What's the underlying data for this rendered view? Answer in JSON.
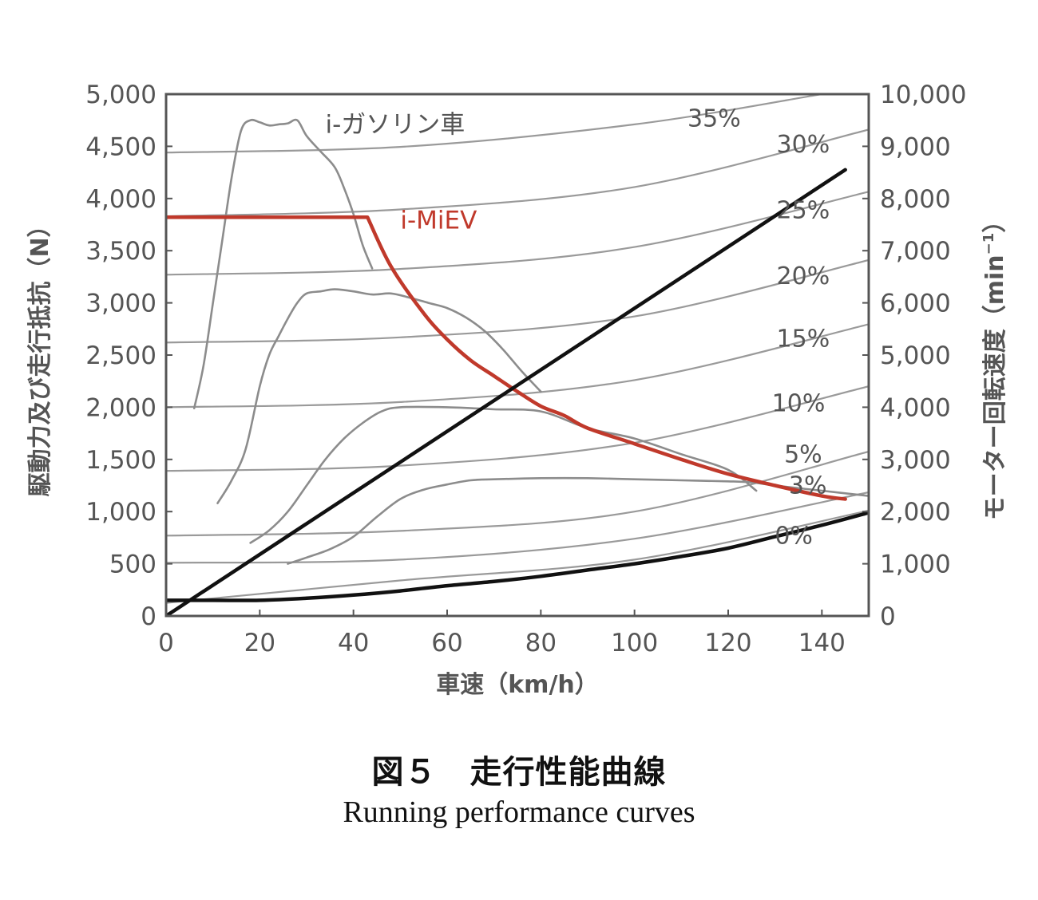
{
  "chart_data": {
    "type": "line",
    "x": {
      "label": "車速（km/h）",
      "lim": [
        0,
        150
      ],
      "ticks": [
        0,
        20,
        40,
        60,
        80,
        100,
        120,
        140
      ]
    },
    "y_left": {
      "label": "駆動力及び走行抵抗（N）",
      "lim": [
        0,
        5000
      ],
      "ticks": [
        0,
        500,
        1000,
        1500,
        2000,
        2500,
        3000,
        3500,
        4000,
        4500,
        5000
      ],
      "tick_labels": [
        "0",
        "500",
        "1,000",
        "1,500",
        "2,000",
        "2,500",
        "3,000",
        "3,500",
        "4,000",
        "4,500",
        "5,000"
      ]
    },
    "y_right": {
      "label": "モーター回転速度（min",
      "label_superscript": "−1",
      "label_close": "）",
      "lim": [
        0,
        10000
      ],
      "ticks": [
        0,
        1000,
        2000,
        3000,
        4000,
        5000,
        6000,
        7000,
        8000,
        9000,
        10000
      ],
      "tick_labels": [
        "0",
        "1,000",
        "2,000",
        "3,000",
        "4,000",
        "5,000",
        "6,000",
        "7,000",
        "8,000",
        "9,000",
        "10,000"
      ]
    },
    "grade_curves": [
      {
        "label": "0%",
        "x": [
          0,
          50,
          100,
          150
        ],
        "y": [
          125,
          340,
          540,
          1010
        ],
        "label_at": [
          134,
          690
        ]
      },
      {
        "label": "3%",
        "x": [
          0,
          50,
          100,
          150
        ],
        "y": [
          510,
          540,
          740,
          1185
        ],
        "label_at": [
          137,
          1175
        ]
      },
      {
        "label": "5%",
        "x": [
          0,
          50,
          100,
          150
        ],
        "y": [
          770,
          815,
          1000,
          1575
        ],
        "label_at": [
          136,
          1470
        ]
      },
      {
        "label": "10%",
        "x": [
          0,
          50,
          100,
          150
        ],
        "y": [
          1390,
          1440,
          1660,
          2200
        ],
        "label_at": [
          135,
          1960
        ]
      },
      {
        "label": "15%",
        "x": [
          0,
          50,
          100,
          150
        ],
        "y": [
          2000,
          2050,
          2260,
          2795
        ],
        "label_at": [
          136,
          2580
        ]
      },
      {
        "label": "20%",
        "x": [
          0,
          50,
          100,
          150
        ],
        "y": [
          2620,
          2670,
          2870,
          3410
        ],
        "label_at": [
          136,
          3180
        ]
      },
      {
        "label": "25%",
        "x": [
          0,
          50,
          100,
          150
        ],
        "y": [
          3270,
          3325,
          3535,
          4065
        ],
        "label_at": [
          136,
          3810
        ]
      },
      {
        "label": "30%",
        "x": [
          0,
          50,
          100,
          150
        ],
        "y": [
          3830,
          3895,
          4110,
          4660
        ],
        "label_at": [
          136,
          4440
        ]
      },
      {
        "label": "35%",
        "x": [
          0,
          50,
          100,
          140
        ],
        "y": [
          4440,
          4495,
          4710,
          5000
        ],
        "label_at": [
          117,
          4690
        ]
      }
    ],
    "series": [
      {
        "name": "i-ガソリン車",
        "axis": "left",
        "color": "#8c8c8c",
        "segments": [
          {
            "x": [
              6,
              8,
              10,
              12,
              14,
              16,
              18,
              20,
              22,
              24,
              26,
              28,
              30,
              33,
              36,
              38,
              40,
              42,
              44
            ],
            "y": [
              1990,
              2400,
              3000,
              3600,
              4200,
              4650,
              4750,
              4730,
              4700,
              4710,
              4720,
              4750,
              4600,
              4450,
              4300,
              4100,
              3850,
              3550,
              3330
            ]
          },
          {
            "x": [
              11,
              14,
              17,
              20,
              22,
              24,
              26,
              28,
              30,
              33,
              36,
              40,
              44,
              48,
              52,
              56,
              60,
              64,
              68,
              72,
              76,
              80
            ],
            "y": [
              1080,
              1300,
              1600,
              2200,
              2500,
              2680,
              2850,
              3000,
              3090,
              3110,
              3130,
              3110,
              3080,
              3090,
              3050,
              3000,
              2950,
              2860,
              2730,
              2550,
              2340,
              2150
            ]
          },
          {
            "x": [
              18,
              22,
              26,
              30,
              34,
              38,
              42,
              46,
              50,
              60,
              70,
              80,
              90,
              100,
              110,
              120,
              126
            ],
            "y": [
              700,
              820,
              1000,
              1250,
              1500,
              1700,
              1850,
              1960,
              2000,
              2000,
              1980,
              1960,
              1800,
              1700,
              1550,
              1400,
              1200
            ]
          },
          {
            "x": [
              26,
              30,
              35,
              40,
              45,
              50,
              55,
              60,
              65,
              70,
              80,
              90,
              100,
              110,
              120,
              125,
              130,
              140,
              150
            ],
            "y": [
              500,
              560,
              640,
              760,
              950,
              1120,
              1210,
              1260,
              1300,
              1310,
              1320,
              1320,
              1310,
              1300,
              1290,
              1280,
              1250,
              1200,
              1150
            ]
          }
        ]
      },
      {
        "name": "i-MiEV",
        "axis": "left",
        "color": "#c0392b",
        "x": [
          0,
          10,
          20,
          30,
          40,
          43,
          48,
          55,
          60,
          65,
          70,
          75,
          80,
          85,
          90,
          100,
          110,
          120,
          130,
          140,
          145
        ],
        "y": [
          3820,
          3820,
          3820,
          3820,
          3820,
          3820,
          3350,
          2900,
          2650,
          2450,
          2300,
          2150,
          2010,
          1920,
          1800,
          1650,
          1500,
          1360,
          1250,
          1150,
          1120
        ]
      },
      {
        "name": "",
        "axis": "right",
        "color": "#111111",
        "x": [
          0,
          145
        ],
        "y": [
          0,
          8550
        ]
      },
      {
        "name": "",
        "axis": "left",
        "color": "#111111",
        "x": [
          0,
          10,
          20,
          30,
          40,
          50,
          60,
          70,
          80,
          90,
          100,
          110,
          120,
          130,
          140,
          150
        ],
        "y": [
          150,
          150,
          150,
          170,
          200,
          240,
          290,
          330,
          380,
          440,
          500,
          570,
          650,
          760,
          870,
          990
        ]
      }
    ],
    "annotations": [
      {
        "text": "i-ガソリン車",
        "x": 34,
        "y": 4630,
        "color": "#555555"
      },
      {
        "text": "i-MiEV",
        "x": 50,
        "y": 3710,
        "color": "#c0392b"
      }
    ]
  },
  "caption": {
    "figure_title": "図５　走行性能曲線",
    "figure_subtitle": "Running performance curves"
  }
}
